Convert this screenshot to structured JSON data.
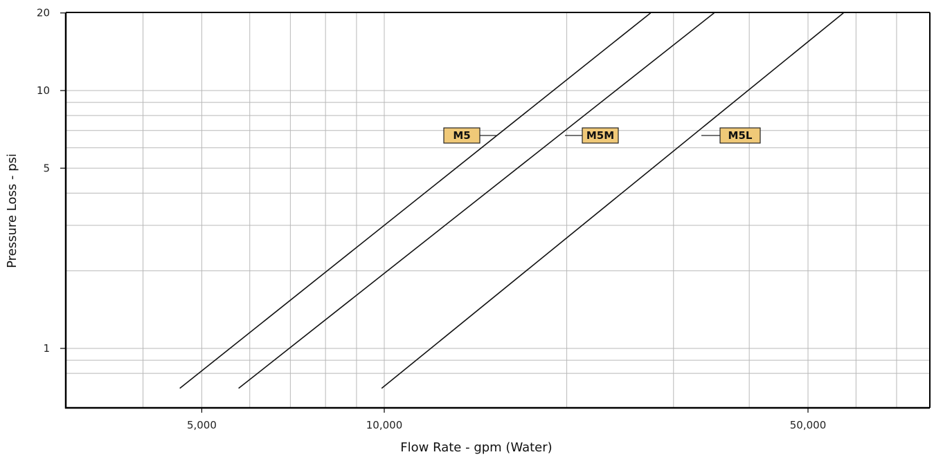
{
  "chart_data": {
    "type": "line",
    "xlabel": "Flow Rate - gpm (Water)",
    "ylabel": "Pressure Loss - psi",
    "x_scale": "log",
    "y_scale": "log",
    "xlim": [
      3000,
      80000
    ],
    "ylim": [
      0.7,
      20
    ],
    "x_ticks": [
      5000,
      10000,
      50000
    ],
    "x_tick_labels": [
      "5,000",
      "10,000",
      "50,000"
    ],
    "y_ticks": [
      1,
      5,
      10,
      20
    ],
    "y_tick_labels": [
      "1",
      "5",
      "10",
      "20"
    ],
    "grid": true,
    "label_color": "#f0c978",
    "series": [
      {
        "name": "M5",
        "x": [
          4600,
          27500
        ],
        "y": [
          0.7,
          20
        ]
      },
      {
        "name": "M5M",
        "x": [
          5750,
          35000
        ],
        "y": [
          0.7,
          20
        ]
      },
      {
        "name": "M5L",
        "x": [
          9900,
          57200
        ],
        "y": [
          0.7,
          20
        ]
      }
    ]
  }
}
